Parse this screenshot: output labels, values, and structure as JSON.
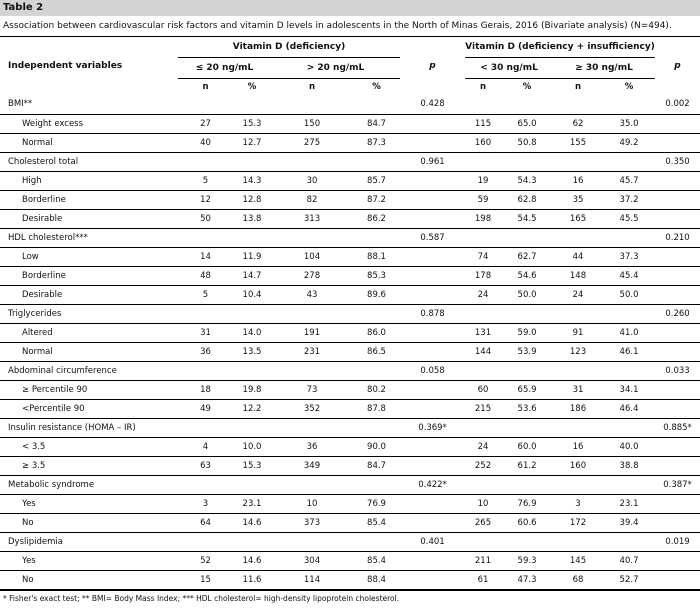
{
  "table_label": "Table 2",
  "caption": "Association between cardiovascular risk factors and vitamin D levels in adolescents in the North of Minas Gerais, 2016 (Bivariate analysis) (N=494).",
  "headers": {
    "independent_variables": "Independent variables",
    "group1": "Vitamin D (deficiency)",
    "group2": "Vitamin D (deficiency + insufficiency)",
    "g1_c1": "≤ 20 ng/mL",
    "g1_c2": "> 20 ng/mL",
    "g2_c1": "< 30 ng/mL",
    "g2_c2": "≥ 30 ng/mL",
    "p": "p",
    "n": "n",
    "pct": "%"
  },
  "rows": [
    {
      "label": "BMI**",
      "sub": false,
      "p1": "0.428",
      "p2": "0.002",
      "v": [
        "",
        "",
        "",
        "",
        "",
        "",
        "",
        ""
      ]
    },
    {
      "label": "Weight excess",
      "sub": true,
      "p1": "",
      "p2": "",
      "v": [
        "27",
        "15.3",
        "150",
        "84.7",
        "115",
        "65.0",
        "62",
        "35.0"
      ]
    },
    {
      "label": "Normal",
      "sub": true,
      "p1": "",
      "p2": "",
      "v": [
        "40",
        "12.7",
        "275",
        "87.3",
        "160",
        "50.8",
        "155",
        "49.2"
      ]
    },
    {
      "label": "Cholesterol total",
      "sub": false,
      "p1": "0.961",
      "p2": "0.350",
      "v": [
        "",
        "",
        "",
        "",
        "",
        "",
        "",
        ""
      ]
    },
    {
      "label": "High",
      "sub": true,
      "p1": "",
      "p2": "",
      "v": [
        "5",
        "14.3",
        "30",
        "85.7",
        "19",
        "54.3",
        "16",
        "45.7"
      ]
    },
    {
      "label": "Borderline",
      "sub": true,
      "p1": "",
      "p2": "",
      "v": [
        "12",
        "12.8",
        "82",
        "87.2",
        "59",
        "62.8",
        "35",
        "37.2"
      ]
    },
    {
      "label": "Desirable",
      "sub": true,
      "p1": "",
      "p2": "",
      "v": [
        "50",
        "13.8",
        "313",
        "86.2",
        "198",
        "54.5",
        "165",
        "45.5"
      ]
    },
    {
      "label": "HDL cholesterol***",
      "sub": false,
      "p1": "0.587",
      "p2": "0.210",
      "v": [
        "",
        "",
        "",
        "",
        "",
        "",
        "",
        ""
      ]
    },
    {
      "label": "Low",
      "sub": true,
      "p1": "",
      "p2": "",
      "v": [
        "14",
        "11.9",
        "104",
        "88.1",
        "74",
        "62.7",
        "44",
        "37.3"
      ]
    },
    {
      "label": "Borderline",
      "sub": true,
      "p1": "",
      "p2": "",
      "v": [
        "48",
        "14.7",
        "278",
        "85.3",
        "178",
        "54.6",
        "148",
        "45.4"
      ]
    },
    {
      "label": "Desirable",
      "sub": true,
      "p1": "",
      "p2": "",
      "v": [
        "5",
        "10.4",
        "43",
        "89.6",
        "24",
        "50.0",
        "24",
        "50.0"
      ]
    },
    {
      "label": "Triglycerides",
      "sub": false,
      "p1": "0.878",
      "p2": "0.260",
      "v": [
        "",
        "",
        "",
        "",
        "",
        "",
        "",
        ""
      ]
    },
    {
      "label": "Altered",
      "sub": true,
      "p1": "",
      "p2": "",
      "v": [
        "31",
        "14.0",
        "191",
        "86.0",
        "131",
        "59.0",
        "91",
        "41.0"
      ]
    },
    {
      "label": "Normal",
      "sub": true,
      "p1": "",
      "p2": "",
      "v": [
        "36",
        "13.5",
        "231",
        "86.5",
        "144",
        "53.9",
        "123",
        "46.1"
      ]
    },
    {
      "label": "Abdominal circumference",
      "sub": false,
      "p1": "0.058",
      "p2": "0.033",
      "v": [
        "",
        "",
        "",
        "",
        "",
        "",
        "",
        ""
      ]
    },
    {
      "label": "≥ Percentile 90",
      "sub": true,
      "p1": "",
      "p2": "",
      "v": [
        "18",
        "19.8",
        "73",
        "80.2",
        "60",
        "65.9",
        "31",
        "34.1"
      ]
    },
    {
      "label": "<Percentile 90",
      "sub": true,
      "p1": "",
      "p2": "",
      "v": [
        "49",
        "12.2",
        "352",
        "87.8",
        "215",
        "53.6",
        "186",
        "46.4"
      ]
    },
    {
      "label": "Insulin resistance (HOMA – IR)",
      "sub": false,
      "p1": "0.369*",
      "p2": "0.885*",
      "v": [
        "",
        "",
        "",
        "",
        "",
        "",
        "",
        ""
      ]
    },
    {
      "label": "< 3.5",
      "sub": true,
      "p1": "",
      "p2": "",
      "v": [
        "4",
        "10.0",
        "36",
        "90.0",
        "24",
        "60.0",
        "16",
        "40.0"
      ]
    },
    {
      "label": "≥ 3.5",
      "sub": true,
      "p1": "",
      "p2": "",
      "v": [
        "63",
        "15.3",
        "349",
        "84.7",
        "252",
        "61.2",
        "160",
        "38.8"
      ]
    },
    {
      "label": "Metabolic syndrome",
      "sub": false,
      "p1": "0.422*",
      "p2": "0.387*",
      "v": [
        "",
        "",
        "",
        "",
        "",
        "",
        "",
        ""
      ]
    },
    {
      "label": "Yes",
      "sub": true,
      "p1": "",
      "p2": "",
      "v": [
        "3",
        "23.1",
        "10",
        "76.9",
        "10",
        "76.9",
        "3",
        "23.1"
      ]
    },
    {
      "label": "No",
      "sub": true,
      "p1": "",
      "p2": "",
      "v": [
        "64",
        "14.6",
        "373",
        "85.4",
        "265",
        "60.6",
        "172",
        "39.4"
      ]
    },
    {
      "label": "Dyslipidemia",
      "sub": false,
      "p1": "0.401",
      "p2": "0.019",
      "v": [
        "",
        "",
        "",
        "",
        "",
        "",
        "",
        ""
      ]
    },
    {
      "label": "Yes",
      "sub": true,
      "p1": "",
      "p2": "",
      "v": [
        "52",
        "14.6",
        "304",
        "85.4",
        "211",
        "59.3",
        "145",
        "40.7"
      ]
    },
    {
      "label": "No",
      "sub": true,
      "p1": "",
      "p2": "",
      "v": [
        "15",
        "11.6",
        "114",
        "88.4",
        "61",
        "47.3",
        "68",
        "52.7"
      ]
    }
  ],
  "footnote": "* Fisher's exact test; ** BMI= Body Mass Index; *** HDL cholesterol= high-density lipoprotein cholesterol."
}
